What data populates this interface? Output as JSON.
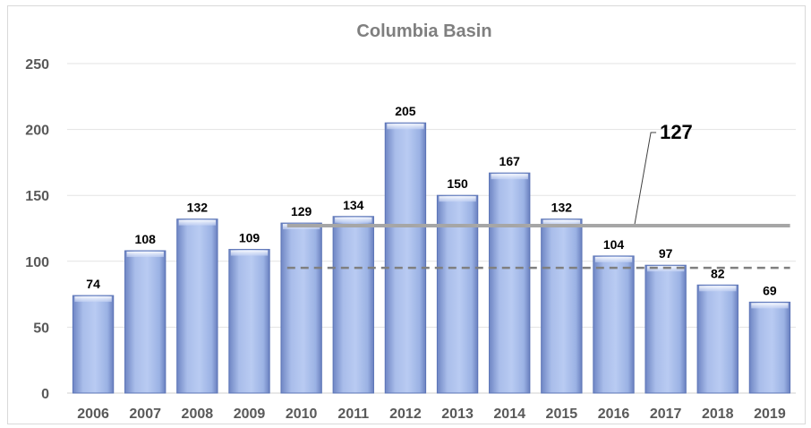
{
  "chart_data": {
    "type": "bar",
    "title": "Columbia Basin",
    "xlabel": "",
    "ylabel": "",
    "ylim": [
      0,
      250
    ],
    "yticks": [
      0,
      50,
      100,
      150,
      200,
      250
    ],
    "grid": true,
    "categories": [
      "2006",
      "2007",
      "2008",
      "2009",
      "2010",
      "2011",
      "2012",
      "2013",
      "2014",
      "2015",
      "2016",
      "2017",
      "2018",
      "2019"
    ],
    "values": [
      74,
      108,
      132,
      109,
      129,
      134,
      205,
      150,
      167,
      132,
      104,
      97,
      82,
      69
    ],
    "reference_lines": [
      {
        "style": "solid",
        "value": 127,
        "from": "2010",
        "to": "2019",
        "label": "127"
      },
      {
        "style": "dashed",
        "value": 95,
        "from": "2010",
        "to": "2019"
      }
    ],
    "colors": {
      "bar_fill": "#9db4e6",
      "bar_edge": "#5b74b6",
      "solid_line": "#a6a6a6",
      "dashed_line": "#7f7f7f",
      "grid": "#e3e3e3"
    }
  }
}
